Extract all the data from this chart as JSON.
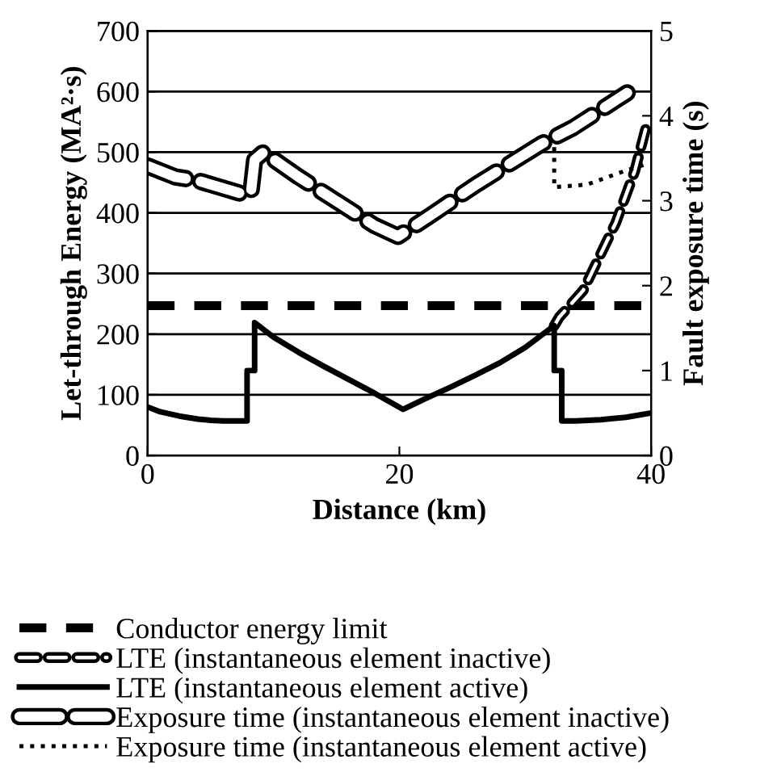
{
  "chart_data": {
    "type": "line",
    "xlabel": "Distance (km)",
    "ylabel": "Let-through Energy (MA²·s)",
    "y2label": "Fault exposure time (s)",
    "xlim": [
      0,
      40
    ],
    "xticks": [
      0,
      20,
      40
    ],
    "ylim": [
      0,
      700
    ],
    "yticks": [
      0,
      100,
      200,
      300,
      400,
      500,
      600,
      700
    ],
    "y2lim": [
      0,
      5
    ],
    "y2ticks": [
      0,
      1,
      2,
      3,
      4,
      5
    ],
    "grid": "y",
    "legend": "bottom",
    "marker": "none",
    "series": [
      {
        "name": "Conductor energy limit",
        "color": "#000000",
        "line_style": "dashed",
        "x": [
          0,
          40
        ],
        "values": [
          247,
          247
        ]
      },
      {
        "name": "LTE (instantaneous element inactive)",
        "color": "#000000",
        "line_style": "dashed",
        "x": [
          32.3,
          32.7,
          34.6,
          37.2,
          38.7,
          39.7
        ],
        "values": [
          214,
          228,
          272,
          384,
          469,
          549
        ]
      },
      {
        "name": "LTE (instantaneous element active)",
        "color": "#000000",
        "line_style": "solid",
        "x": [
          0,
          1,
          2.5,
          4,
          5,
          6,
          7.9,
          7.9,
          8.5,
          8.5,
          10,
          12,
          14,
          16,
          18,
          20.3,
          22,
          24,
          26,
          28,
          30,
          32.3,
          32.3,
          32.9,
          32.9,
          34,
          36,
          38,
          40
        ],
        "values": [
          80,
          72,
          65,
          60,
          58,
          57,
          57,
          140,
          140,
          219,
          195,
          170,
          147,
          125,
          103,
          76,
          93,
          112,
          132,
          153,
          178,
          214,
          140,
          140,
          57,
          57,
          59,
          63,
          70
        ]
      },
      {
        "name": "Exposure time (instantaneous element inactive)",
        "color": "#000000",
        "line_style": "dashed",
        "axis": "y2",
        "x": [
          0,
          2.2,
          3.9,
          7.3,
          8.2,
          8.5,
          9.2,
          12,
          18,
          19.9,
          22.3,
          26.1,
          31.3,
          33.8,
          38.1
        ],
        "values": [
          3.41,
          3.28,
          3.24,
          3.09,
          3.09,
          3.48,
          3.57,
          3.28,
          2.71,
          2.58,
          2.81,
          3.19,
          3.67,
          3.86,
          4.27
        ]
      },
      {
        "name": "Exposure time (instantaneous element active)",
        "color": "#000000",
        "line_style": "dotted",
        "axis": "y2",
        "x": [
          32.3,
          32.3,
          34.9,
          37.9,
          39.8
        ],
        "values": [
          3.63,
          3.16,
          3.19,
          3.35,
          3.44
        ]
      }
    ]
  }
}
